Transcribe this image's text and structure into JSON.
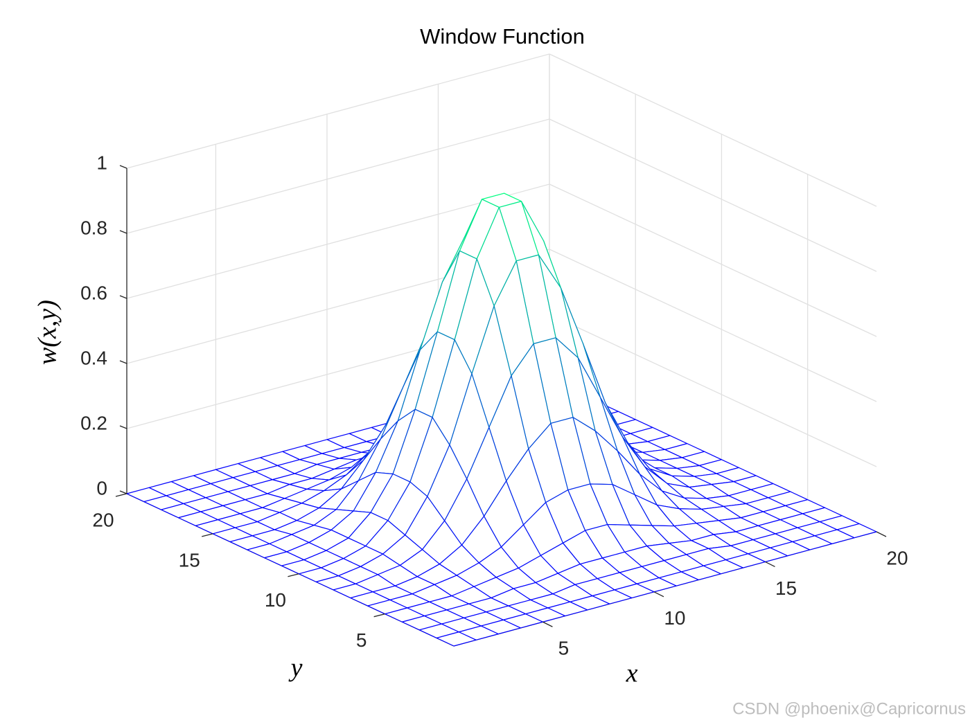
{
  "chart_data": {
    "type": "mesh",
    "title": "Window Function",
    "xlabel": "x",
    "ylabel": "y",
    "zlabel": "w(x,y)",
    "colormap": "winter",
    "grid": true,
    "x": [
      1,
      2,
      3,
      4,
      5,
      6,
      7,
      8,
      9,
      10,
      11,
      12,
      13,
      14,
      15,
      16,
      17,
      18,
      19,
      20
    ],
    "y": [
      1,
      2,
      3,
      4,
      5,
      6,
      7,
      8,
      9,
      10,
      11,
      12,
      13,
      14,
      15,
      16,
      17,
      18,
      19,
      20
    ],
    "xlim": [
      1,
      20
    ],
    "ylim": [
      1,
      20
    ],
    "zlim": [
      0,
      1
    ],
    "xticks": [
      5,
      10,
      15,
      20
    ],
    "yticks": [
      5,
      10,
      15,
      20
    ],
    "zticks": [
      0,
      0.2,
      0.4,
      0.6,
      0.8,
      1
    ],
    "z": [
      [
        0,
        0,
        0,
        0,
        0,
        0,
        0,
        0,
        0,
        0,
        0,
        0,
        0,
        0,
        0,
        0,
        0,
        0,
        0,
        0
      ],
      [
        0,
        0,
        0,
        0,
        0,
        0,
        0,
        0,
        0,
        0,
        0,
        0,
        0,
        0,
        0,
        0,
        0,
        0,
        0,
        0
      ],
      [
        0,
        0,
        0,
        0,
        0,
        0,
        0,
        0.01,
        0.01,
        0.01,
        0.01,
        0.01,
        0.01,
        0.01,
        0,
        0,
        0,
        0,
        0,
        0
      ],
      [
        0,
        0,
        0,
        0,
        0,
        0.01,
        0.01,
        0.02,
        0.03,
        0.03,
        0.03,
        0.03,
        0.02,
        0.01,
        0.01,
        0,
        0,
        0,
        0,
        0
      ],
      [
        0,
        0,
        0,
        0,
        0.01,
        0.02,
        0.03,
        0.05,
        0.07,
        0.09,
        0.09,
        0.07,
        0.05,
        0.03,
        0.02,
        0.01,
        0,
        0,
        0,
        0
      ],
      [
        0,
        0,
        0,
        0.01,
        0.02,
        0.04,
        0.07,
        0.12,
        0.17,
        0.19,
        0.19,
        0.17,
        0.12,
        0.07,
        0.04,
        0.02,
        0.01,
        0,
        0,
        0
      ],
      [
        0,
        0,
        0,
        0.01,
        0.03,
        0.07,
        0.14,
        0.23,
        0.31,
        0.37,
        0.37,
        0.31,
        0.23,
        0.14,
        0.07,
        0.03,
        0.01,
        0,
        0,
        0
      ],
      [
        0,
        0,
        0.01,
        0.02,
        0.05,
        0.12,
        0.23,
        0.37,
        0.51,
        0.59,
        0.59,
        0.51,
        0.37,
        0.23,
        0.12,
        0.05,
        0.02,
        0.01,
        0,
        0
      ],
      [
        0,
        0,
        0.01,
        0.03,
        0.07,
        0.17,
        0.31,
        0.51,
        0.7,
        0.82,
        0.82,
        0.7,
        0.51,
        0.31,
        0.17,
        0.07,
        0.03,
        0.01,
        0,
        0
      ],
      [
        0,
        0,
        0.01,
        0.03,
        0.09,
        0.19,
        0.37,
        0.59,
        0.82,
        0.96,
        0.96,
        0.82,
        0.59,
        0.37,
        0.19,
        0.09,
        0.03,
        0.01,
        0,
        0
      ],
      [
        0,
        0,
        0.01,
        0.03,
        0.09,
        0.19,
        0.37,
        0.59,
        0.82,
        0.96,
        0.96,
        0.82,
        0.59,
        0.37,
        0.19,
        0.09,
        0.03,
        0.01,
        0,
        0
      ],
      [
        0,
        0,
        0.01,
        0.03,
        0.07,
        0.17,
        0.31,
        0.51,
        0.7,
        0.82,
        0.82,
        0.7,
        0.51,
        0.31,
        0.17,
        0.07,
        0.03,
        0.01,
        0,
        0
      ],
      [
        0,
        0,
        0.01,
        0.02,
        0.05,
        0.12,
        0.23,
        0.37,
        0.51,
        0.59,
        0.59,
        0.51,
        0.37,
        0.23,
        0.12,
        0.05,
        0.02,
        0.01,
        0,
        0
      ],
      [
        0,
        0,
        0,
        0.01,
        0.03,
        0.07,
        0.14,
        0.23,
        0.31,
        0.37,
        0.37,
        0.31,
        0.23,
        0.14,
        0.07,
        0.03,
        0.01,
        0,
        0,
        0
      ],
      [
        0,
        0,
        0,
        0.01,
        0.02,
        0.04,
        0.07,
        0.12,
        0.17,
        0.19,
        0.19,
        0.17,
        0.12,
        0.07,
        0.04,
        0.02,
        0.01,
        0,
        0,
        0
      ],
      [
        0,
        0,
        0,
        0,
        0.01,
        0.02,
        0.03,
        0.05,
        0.07,
        0.09,
        0.09,
        0.07,
        0.05,
        0.03,
        0.02,
        0.01,
        0,
        0,
        0,
        0
      ],
      [
        0,
        0,
        0,
        0,
        0,
        0.01,
        0.01,
        0.02,
        0.03,
        0.03,
        0.03,
        0.03,
        0.02,
        0.01,
        0.01,
        0,
        0,
        0,
        0,
        0
      ],
      [
        0,
        0,
        0,
        0,
        0,
        0,
        0,
        0.01,
        0.01,
        0.01,
        0.01,
        0.01,
        0.01,
        0.01,
        0,
        0,
        0,
        0,
        0,
        0
      ],
      [
        0,
        0,
        0,
        0,
        0,
        0,
        0,
        0,
        0,
        0,
        0,
        0,
        0,
        0,
        0,
        0,
        0,
        0,
        0,
        0
      ],
      [
        0,
        0,
        0,
        0,
        0,
        0,
        0,
        0,
        0,
        0,
        0,
        0,
        0,
        0,
        0,
        0,
        0,
        0,
        0,
        0
      ]
    ]
  },
  "watermark": "CSDN @phoenix@Capricornus"
}
